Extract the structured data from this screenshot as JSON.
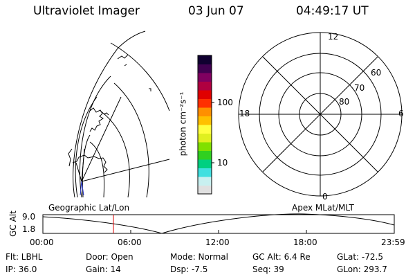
{
  "header": {
    "title": "Ultraviolet Imager",
    "date": "03 Jun 07",
    "time": "04:49:17 UT"
  },
  "colorbar": {
    "unit_label": "photon cm⁻²s⁻¹",
    "tick_100": "100",
    "tick_10": "10",
    "colors": [
      "#e0e0e0",
      "#c8f0f0",
      "#40e0e0",
      "#00d080",
      "#30d020",
      "#80e000",
      "#e0f020",
      "#ffff40",
      "#ffc000",
      "#ff9000",
      "#ff3000",
      "#e00000",
      "#b00040",
      "#800060",
      "#400050",
      "#100030"
    ]
  },
  "geo_map": {
    "label": "Geographic Lat/Lon"
  },
  "polar_plot": {
    "label": "Apex MLat/MLT",
    "mlt_12": "12",
    "mlt_18": "18",
    "mlt_6": "6",
    "mlt_0": "0",
    "lat_60": "60",
    "lat_70": "70",
    "lat_80": "80"
  },
  "timeline": {
    "ylabel": "GC Alt",
    "y_max": "9.0",
    "y_min": "1.8",
    "ticks": [
      "00:00",
      "06:00",
      "12:00",
      "18:00",
      "23:59"
    ],
    "marker_time_hours": 4.82,
    "marker_color": "#dd0000"
  },
  "info": {
    "flt": "Flt: LBHL",
    "ip": "IP: 36.0",
    "door": "Door: Open",
    "gain": "Gain: 14",
    "mode": "Mode: Normal",
    "dsp": "Dsp:  -7.5",
    "gcalt": "GC Alt: 6.4 Re",
    "seq": "Seq: 39",
    "glat": "GLat: -72.5",
    "glon": "GLon: 293.7"
  }
}
